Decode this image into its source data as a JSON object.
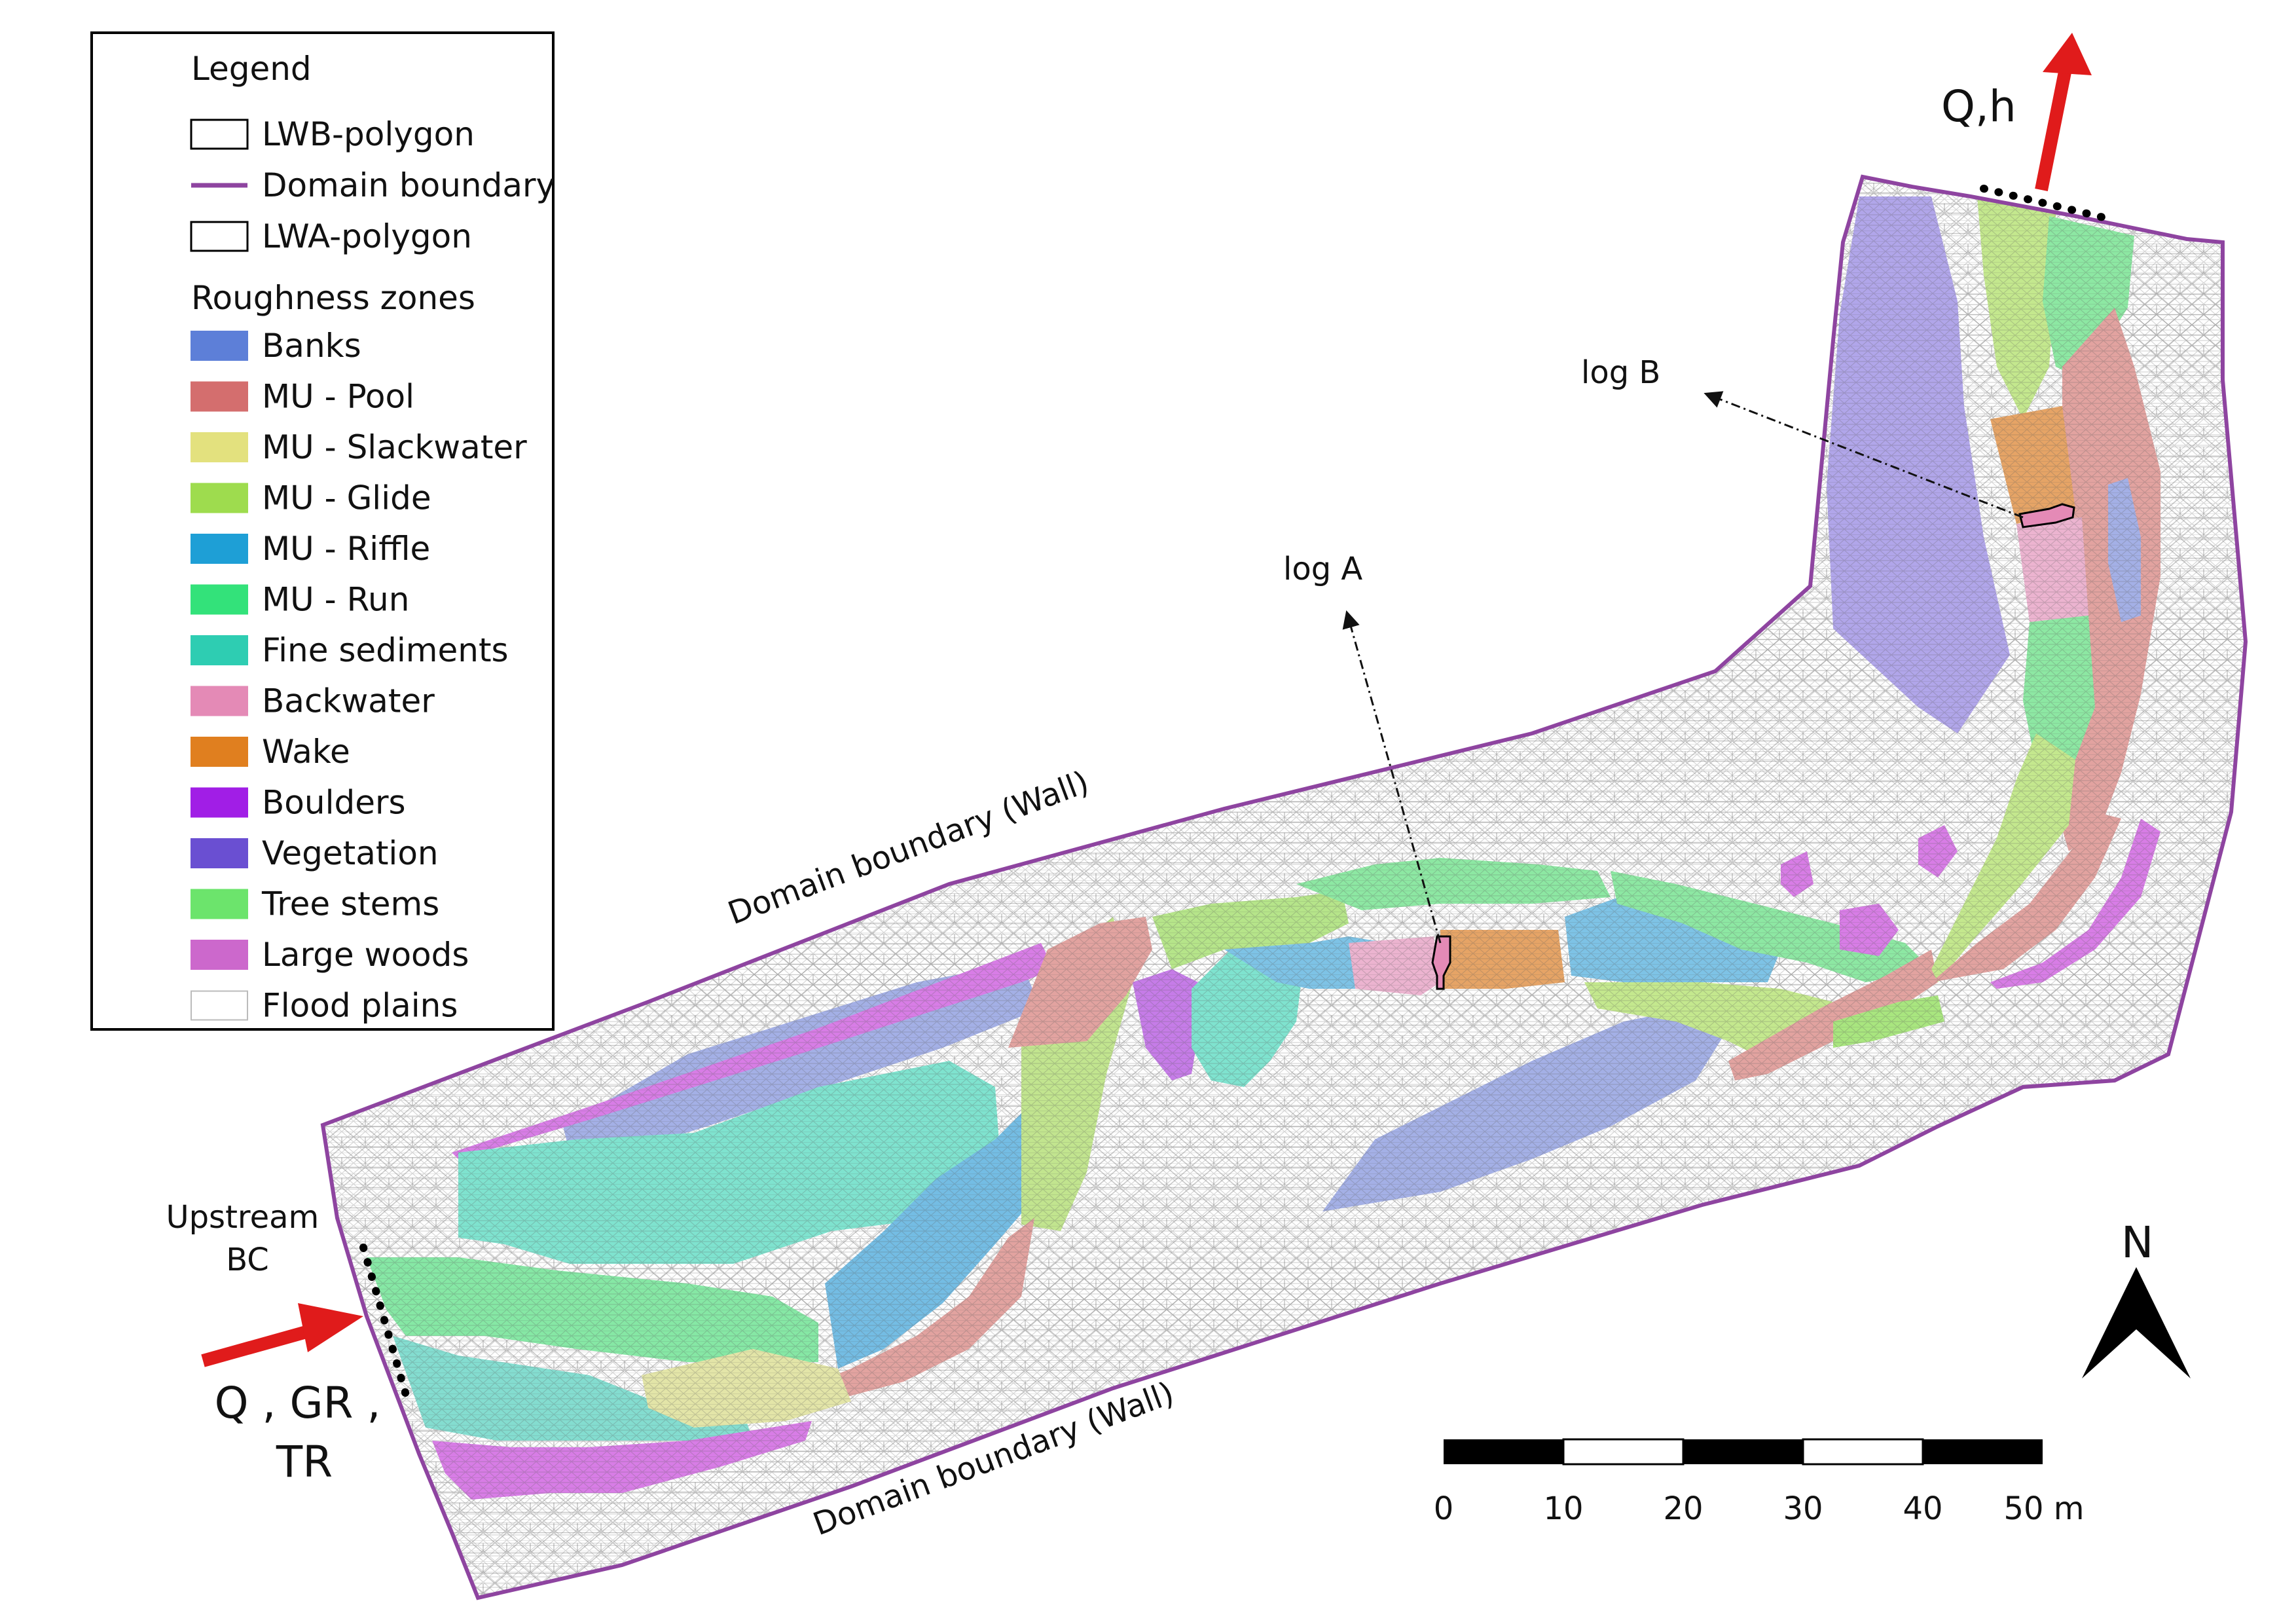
{
  "legend": {
    "title": "Legend",
    "lines": [
      {
        "label": "LWB-polygon",
        "kind": "outline",
        "color": "#ffffff"
      },
      {
        "label": "Domain boundary",
        "kind": "line",
        "color": "#8e44a0"
      },
      {
        "label": "LWA-polygon",
        "kind": "outline",
        "color": "#ffffff"
      }
    ],
    "zones_title": "Roughness zones",
    "zones": [
      {
        "label": "Banks",
        "color": "#5d7fd8"
      },
      {
        "label": "MU - Pool",
        "color": "#d46e6e"
      },
      {
        "label": "MU - Slackwater",
        "color": "#e3e17e"
      },
      {
        "label": "MU - Glide",
        "color": "#9edc4e"
      },
      {
        "label": "MU - Riffle",
        "color": "#1e9fd6"
      },
      {
        "label": "MU - Run",
        "color": "#33e27a"
      },
      {
        "label": "Fine sediments",
        "color": "#2ecdb2"
      },
      {
        "label": "Backwater",
        "color": "#e48ab6"
      },
      {
        "label": "Wake",
        "color": "#e07f1f"
      },
      {
        "label": "Boulders",
        "color": "#a11ee6"
      },
      {
        "label": "Vegetation",
        "color": "#6a4fd2"
      },
      {
        "label": "Tree stems",
        "color": "#6ce46c"
      },
      {
        "label": "Large woods",
        "color": "#cc68cc"
      },
      {
        "label": "Flood plains",
        "color": "#ffffff"
      }
    ]
  },
  "labels": {
    "outlet": "Q,h",
    "log_a": "log A",
    "log_b": "log B",
    "upstream_bc_line1": "Upstream",
    "upstream_bc_line2": "BC",
    "inflow_line1": "Q , GR ,",
    "inflow_line2": "TR",
    "wall_top": "Domain boundary (Wall)",
    "wall_bottom": "Domain boundary (Wall)"
  },
  "north_arrow": {
    "label": "N"
  },
  "scale_bar": {
    "ticks": [
      "0",
      "10",
      "20",
      "30",
      "40"
    ],
    "end_label": "50 m"
  },
  "colors": {
    "boundary": "#8e44a0",
    "flow_arrow": "#e01b1b",
    "mesh": "#c9c9c9"
  }
}
